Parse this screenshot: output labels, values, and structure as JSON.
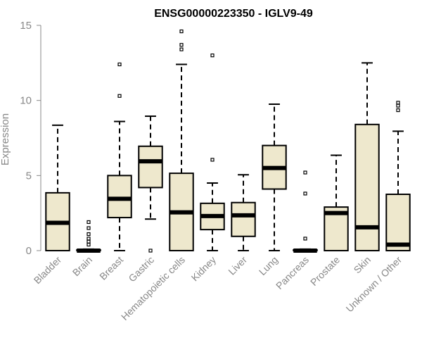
{
  "chart_data": {
    "type": "box",
    "title": "ENSG00000223350 - IGLV9-49",
    "xlabel": "",
    "ylabel": "Expression",
    "ylim": [
      0,
      15
    ],
    "yticks": [
      0,
      5,
      10,
      15
    ],
    "grid": false,
    "box_color": "#EEE8CD",
    "categories": [
      "Bladder",
      "Brain",
      "Breast",
      "Gastric",
      "Hematopoietic cells",
      "Kidney",
      "Liver",
      "Lung",
      "Pancreas",
      "Prostate",
      "Skin",
      "Unknown / Other"
    ],
    "boxes": [
      {
        "category": "Bladder",
        "whisker_low": 0,
        "q1": 0,
        "median": 1.85,
        "q3": 3.85,
        "whisker_high": 8.35,
        "outliers": []
      },
      {
        "category": "Brain",
        "whisker_low": 0,
        "q1": 0,
        "median": 0,
        "q3": 0.05,
        "whisker_high": 0.1,
        "outliers": [
          0.4,
          0.6,
          0.8,
          1.1,
          1.5,
          1.9
        ]
      },
      {
        "category": "Breast",
        "whisker_low": 0,
        "q1": 2.2,
        "median": 3.45,
        "q3": 5.0,
        "whisker_high": 8.6,
        "outliers": [
          10.3,
          12.4
        ]
      },
      {
        "category": "Gastric",
        "whisker_low": 2.1,
        "q1": 4.2,
        "median": 5.95,
        "q3": 6.95,
        "whisker_high": 8.95,
        "outliers": [
          0
        ]
      },
      {
        "category": "Hematopoietic cells",
        "whisker_low": 0,
        "q1": 0,
        "median": 2.55,
        "q3": 5.15,
        "whisker_high": 12.4,
        "outliers": [
          13.4,
          13.7,
          14.6
        ]
      },
      {
        "category": "Kidney",
        "whisker_low": 0,
        "q1": 1.4,
        "median": 2.3,
        "q3": 3.15,
        "whisker_high": 4.5,
        "outliers": [
          6.05,
          13.0
        ]
      },
      {
        "category": "Liver",
        "whisker_low": 0,
        "q1": 0.95,
        "median": 2.35,
        "q3": 3.2,
        "whisker_high": 5.05,
        "outliers": []
      },
      {
        "category": "Lung",
        "whisker_low": 0,
        "q1": 4.1,
        "median": 5.5,
        "q3": 7.0,
        "whisker_high": 9.75,
        "outliers": []
      },
      {
        "category": "Pancreas",
        "whisker_low": 0,
        "q1": 0,
        "median": 0,
        "q3": 0.05,
        "whisker_high": 0.1,
        "outliers": [
          0.8,
          3.8,
          5.2
        ]
      },
      {
        "category": "Prostate",
        "whisker_low": 0,
        "q1": 0,
        "median": 2.5,
        "q3": 2.9,
        "whisker_high": 6.35,
        "outliers": []
      },
      {
        "category": "Skin",
        "whisker_low": 0,
        "q1": 0,
        "median": 1.55,
        "q3": 8.4,
        "whisker_high": 12.5,
        "outliers": []
      },
      {
        "category": "Unknown / Other",
        "whisker_low": 0,
        "q1": 0,
        "median": 0.4,
        "q3": 3.75,
        "whisker_high": 7.95,
        "outliers": [
          9.35,
          9.65,
          9.85
        ]
      }
    ]
  }
}
